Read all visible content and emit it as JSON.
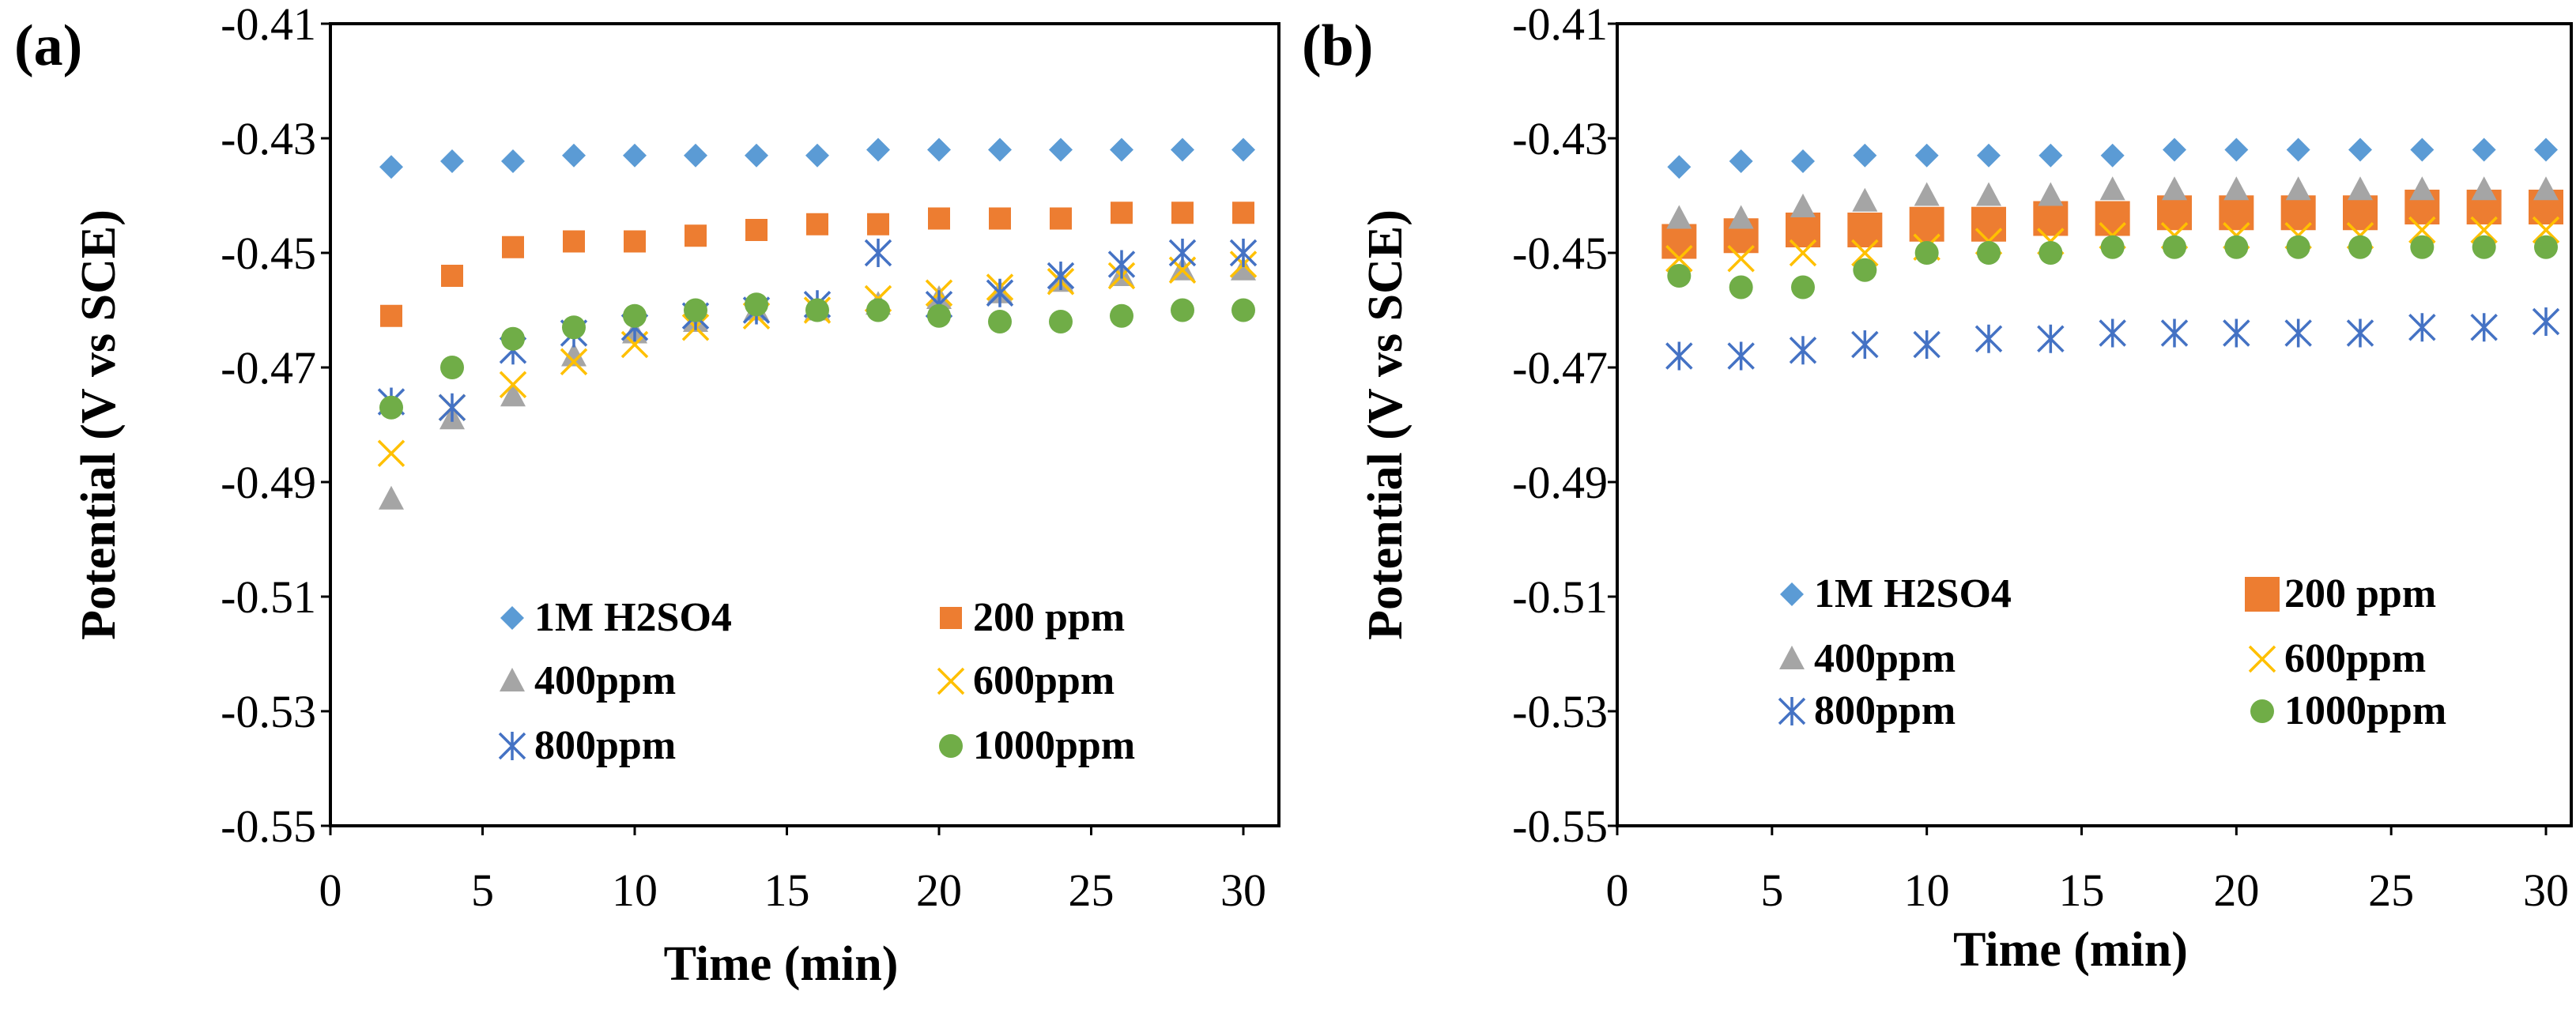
{
  "colors": {
    "1M H2SO4": "#5B9BD5",
    "200 ppm": "#ED7D31",
    "400ppm": "#A5A5A5",
    "600ppm": "#FFC000",
    "800ppm": "#4472C4",
    "1000ppm": "#70AD47"
  },
  "chart_data": [
    {
      "type": "scatter",
      "panel_label": "(a)",
      "xlabel": "Time (min)",
      "ylabel": "Potential (V vs SCE)",
      "xlim": [
        0,
        30
      ],
      "ylim": [
        -0.55,
        -0.41
      ],
      "xticks": [
        0,
        5,
        10,
        15,
        20,
        25,
        30
      ],
      "xtick_labels": [
        "0",
        "5",
        "10",
        "15",
        "20",
        "25",
        "30"
      ],
      "yticks": [
        -0.41,
        -0.43,
        -0.45,
        -0.47,
        -0.49,
        -0.51,
        -0.53,
        -0.55
      ],
      "ytick_labels": [
        "-0.41",
        "-0.43",
        "-0.45",
        "-0.47",
        "-0.49",
        "-0.51",
        "-0.53",
        "-0.55"
      ],
      "legend_position": "bottom-center",
      "x": [
        2,
        4,
        6,
        8,
        10,
        12,
        14,
        16,
        18,
        20,
        22,
        24,
        26,
        28,
        30
      ],
      "series": [
        {
          "name": "1M H2SO4",
          "marker": "diamond",
          "values": [
            -0.435,
            -0.434,
            -0.434,
            -0.433,
            -0.433,
            -0.433,
            -0.433,
            -0.433,
            -0.432,
            -0.432,
            -0.432,
            -0.432,
            -0.432,
            -0.432,
            -0.432
          ]
        },
        {
          "name": "200 ppm",
          "marker": "square",
          "values": [
            -0.461,
            -0.454,
            -0.449,
            -0.448,
            -0.448,
            -0.447,
            -0.446,
            -0.445,
            -0.445,
            -0.444,
            -0.444,
            -0.444,
            -0.443,
            -0.443,
            -0.443
          ]
        },
        {
          "name": "400ppm",
          "marker": "triangle",
          "values": [
            -0.493,
            -0.479,
            -0.475,
            -0.468,
            -0.464,
            -0.462,
            -0.46,
            -0.46,
            -0.459,
            -0.458,
            -0.457,
            -0.455,
            -0.454,
            -0.453,
            -0.453
          ]
        },
        {
          "name": "600ppm",
          "marker": "x",
          "values": [
            -0.485,
            -0.477,
            -0.473,
            -0.469,
            -0.466,
            -0.463,
            -0.461,
            -0.46,
            -0.458,
            -0.457,
            -0.456,
            -0.455,
            -0.454,
            -0.453,
            -0.452
          ]
        },
        {
          "name": "800ppm",
          "marker": "asterisk",
          "values": [
            -0.476,
            -0.477,
            -0.467,
            -0.464,
            -0.463,
            -0.461,
            -0.46,
            -0.459,
            -0.45,
            -0.459,
            -0.457,
            -0.454,
            -0.452,
            -0.45,
            -0.45
          ]
        },
        {
          "name": "1000ppm",
          "marker": "circle",
          "values": [
            -0.477,
            -0.47,
            -0.465,
            -0.463,
            -0.461,
            -0.46,
            -0.459,
            -0.46,
            -0.46,
            -0.461,
            -0.462,
            -0.462,
            -0.461,
            -0.46,
            -0.46
          ]
        }
      ]
    },
    {
      "type": "scatter",
      "panel_label": "(b)",
      "xlabel": "Time (min)",
      "ylabel": "Potential (V vs SCE)",
      "xlim": [
        0,
        30
      ],
      "ylim": [
        -0.55,
        -0.41
      ],
      "xticks": [
        0,
        5,
        10,
        15,
        20,
        25,
        30
      ],
      "xtick_labels": [
        "0",
        "5",
        "10",
        "15",
        "20",
        "25",
        "30"
      ],
      "yticks": [
        -0.41,
        -0.43,
        -0.45,
        -0.47,
        -0.49,
        -0.51,
        -0.53,
        -0.55
      ],
      "ytick_labels": [
        "-0.41",
        "-0.43",
        "-0.45",
        "-0.47",
        "-0.49",
        "-0.51",
        "-0.53",
        "-0.55"
      ],
      "legend_position": "bottom-center",
      "x": [
        2,
        4,
        6,
        8,
        10,
        12,
        14,
        16,
        18,
        20,
        22,
        24,
        26,
        28,
        30
      ],
      "series": [
        {
          "name": "1M H2SO4",
          "marker": "diamond",
          "values": [
            -0.435,
            -0.434,
            -0.434,
            -0.433,
            -0.433,
            -0.433,
            -0.433,
            -0.433,
            -0.432,
            -0.432,
            -0.432,
            -0.432,
            -0.432,
            -0.432,
            -0.432
          ]
        },
        {
          "name": "200 ppm",
          "marker": "square-large",
          "values": [
            -0.448,
            -0.447,
            -0.446,
            -0.446,
            -0.445,
            -0.445,
            -0.444,
            -0.444,
            -0.443,
            -0.443,
            -0.443,
            -0.443,
            -0.442,
            -0.442,
            -0.442
          ]
        },
        {
          "name": "400ppm",
          "marker": "triangle",
          "values": [
            -0.444,
            -0.444,
            -0.442,
            -0.441,
            -0.44,
            -0.44,
            -0.44,
            -0.439,
            -0.439,
            -0.439,
            -0.439,
            -0.439,
            -0.439,
            -0.439,
            -0.439
          ]
        },
        {
          "name": "600ppm",
          "marker": "x",
          "values": [
            -0.451,
            -0.451,
            -0.45,
            -0.45,
            -0.449,
            -0.448,
            -0.448,
            -0.447,
            -0.447,
            -0.447,
            -0.447,
            -0.447,
            -0.446,
            -0.446,
            -0.446
          ]
        },
        {
          "name": "800ppm",
          "marker": "asterisk",
          "values": [
            -0.468,
            -0.468,
            -0.467,
            -0.466,
            -0.466,
            -0.465,
            -0.465,
            -0.464,
            -0.464,
            -0.464,
            -0.464,
            -0.464,
            -0.463,
            -0.463,
            -0.462
          ]
        },
        {
          "name": "1000ppm",
          "marker": "circle",
          "values": [
            -0.454,
            -0.456,
            -0.456,
            -0.453,
            -0.45,
            -0.45,
            -0.45,
            -0.449,
            -0.449,
            -0.449,
            -0.449,
            -0.449,
            -0.449,
            -0.449,
            -0.449
          ]
        }
      ]
    }
  ]
}
